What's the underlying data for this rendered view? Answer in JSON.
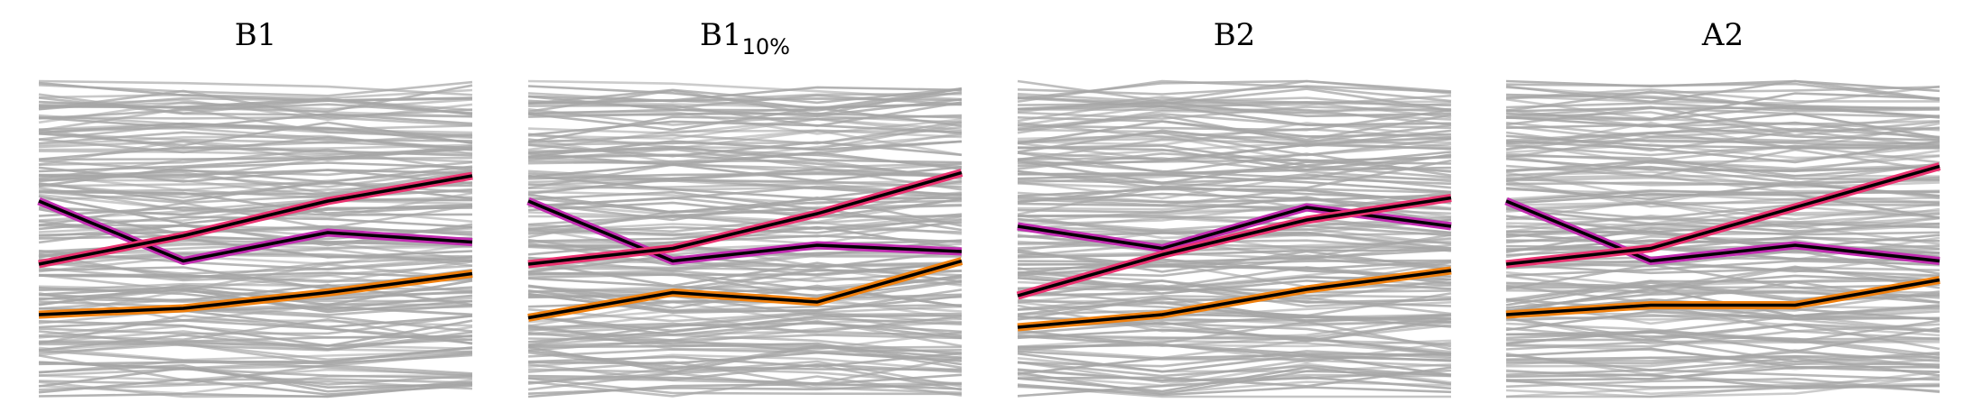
{
  "chart_data": [
    {
      "type": "line",
      "title": "B1",
      "title_subscript": "",
      "x": [
        0,
        1,
        2,
        3
      ],
      "ylim": [
        0,
        100
      ],
      "background_color": "#a6a6a6",
      "background_line_count": 150,
      "background_seed": 11,
      "series": [
        {
          "values": [
            62,
            43,
            52,
            49
          ],
          "color": "#c02cb0"
        },
        {
          "values": [
            42,
            51,
            62,
            70
          ],
          "color": "#ea3270"
        },
        {
          "values": [
            26,
            28,
            33,
            39
          ],
          "color": "#f0800e"
        }
      ]
    },
    {
      "type": "line",
      "title": "B1",
      "title_subscript": "10%",
      "x": [
        0,
        1,
        2,
        3
      ],
      "ylim": [
        0,
        100
      ],
      "background_color": "#a6a6a6",
      "background_line_count": 150,
      "background_seed": 23,
      "series": [
        {
          "values": [
            62,
            43,
            48,
            46
          ],
          "color": "#c02cb0"
        },
        {
          "values": [
            42,
            47,
            58,
            71
          ],
          "color": "#ea3270"
        },
        {
          "values": [
            25,
            33,
            30,
            43
          ],
          "color": "#f0800e"
        }
      ]
    },
    {
      "type": "line",
      "title": "B2",
      "title_subscript": "",
      "x": [
        0,
        1,
        2,
        3
      ],
      "ylim": [
        0,
        100
      ],
      "background_color": "#a6a6a6",
      "background_line_count": 150,
      "background_seed": 37,
      "series": [
        {
          "values": [
            54,
            47,
            60,
            54
          ],
          "color": "#c02cb0"
        },
        {
          "values": [
            32,
            45,
            56,
            63
          ],
          "color": "#ea3270"
        },
        {
          "values": [
            22,
            26,
            34,
            40
          ],
          "color": "#f0800e"
        }
      ]
    },
    {
      "type": "line",
      "title": "A2",
      "title_subscript": "",
      "x": [
        0,
        1,
        2,
        3
      ],
      "ylim": [
        0,
        100
      ],
      "background_color": "#a6a6a6",
      "background_line_count": 150,
      "background_seed": 53,
      "series": [
        {
          "values": [
            62,
            43,
            48,
            43
          ],
          "color": "#c02cb0"
        },
        {
          "values": [
            42,
            47,
            60,
            73
          ],
          "color": "#ea3270"
        },
        {
          "values": [
            26,
            29,
            29,
            37
          ],
          "color": "#f0800e"
        }
      ]
    }
  ]
}
